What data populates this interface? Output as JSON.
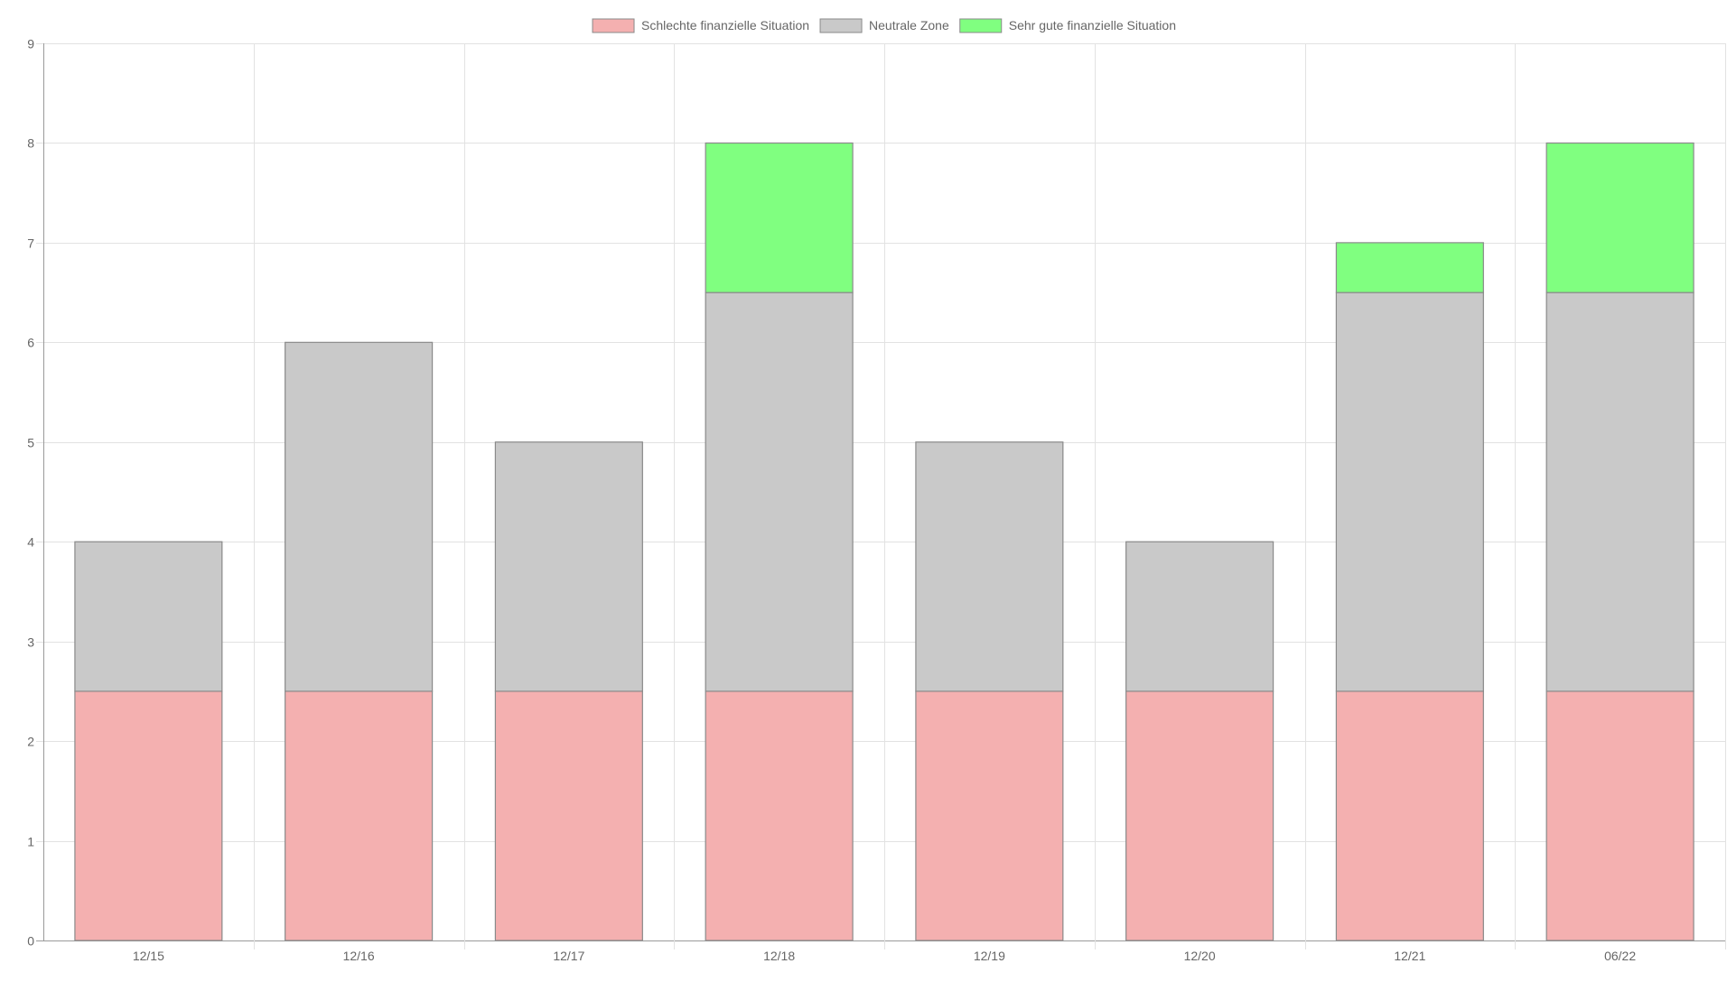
{
  "chart_data": {
    "type": "bar",
    "stacked": true,
    "categories": [
      "12/15",
      "12/16",
      "12/17",
      "12/18",
      "12/19",
      "12/20",
      "12/21",
      "06/22"
    ],
    "series": [
      {
        "name": "Schlechte finanzielle Situation",
        "color": "#f4b0b0",
        "values": [
          2.5,
          2.5,
          2.5,
          2.5,
          2.5,
          2.5,
          2.5,
          2.5
        ]
      },
      {
        "name": "Neutrale Zone",
        "color": "#c9c9c9",
        "values": [
          1.5,
          3.5,
          2.5,
          4.0,
          2.5,
          1.5,
          4.0,
          4.0
        ]
      },
      {
        "name": "Sehr gute finanzielle Situation",
        "color": "#80ff80",
        "values": [
          0,
          0,
          0,
          1.5,
          0,
          0,
          0.5,
          1.5
        ]
      }
    ],
    "ylim": [
      0,
      9
    ],
    "yticks": [
      "0",
      "1",
      "2",
      "3",
      "4",
      "5",
      "6",
      "7",
      "8",
      "9"
    ],
    "grid": true,
    "legend_position": "top",
    "title": "",
    "xlabel": "",
    "ylabel": ""
  }
}
